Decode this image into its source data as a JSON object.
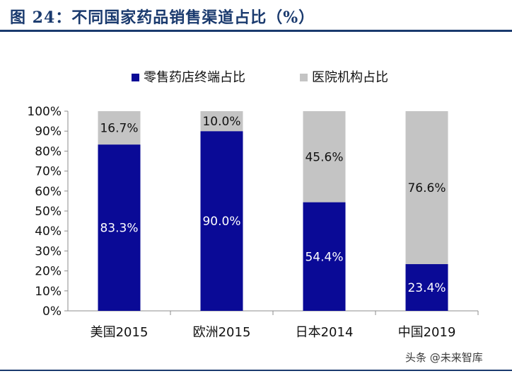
{
  "header": {
    "title": "图 24：不同国家药品销售渠道占比（%）"
  },
  "watermark": "头条 @未来智库",
  "colors": {
    "retail": "#0a0a96",
    "hospital": "#c4c4c4",
    "title": "#1a3a6e"
  },
  "chart_data": {
    "type": "bar",
    "stacked": true,
    "percent": true,
    "categories": [
      "美国2015",
      "欧洲2015",
      "日本2014",
      "中国2019"
    ],
    "series": [
      {
        "name": "零售药店终端占比",
        "values": [
          83.3,
          90.0,
          54.4,
          23.4
        ],
        "labels": [
          "83.3%",
          "90.0%",
          "54.4%",
          "23.4%"
        ],
        "color": "#0a0a96"
      },
      {
        "name": "医院机构占比",
        "values": [
          16.7,
          10.0,
          45.6,
          76.6
        ],
        "labels": [
          "16.7%",
          "10.0%",
          "45.6%",
          "76.6%"
        ],
        "color": "#c4c4c4"
      }
    ],
    "ylim": [
      0,
      100
    ],
    "yticks": [
      "0%",
      "10%",
      "20%",
      "30%",
      "40%",
      "50%",
      "60%",
      "70%",
      "80%",
      "90%",
      "100%"
    ],
    "legend": "top",
    "grid": false
  }
}
